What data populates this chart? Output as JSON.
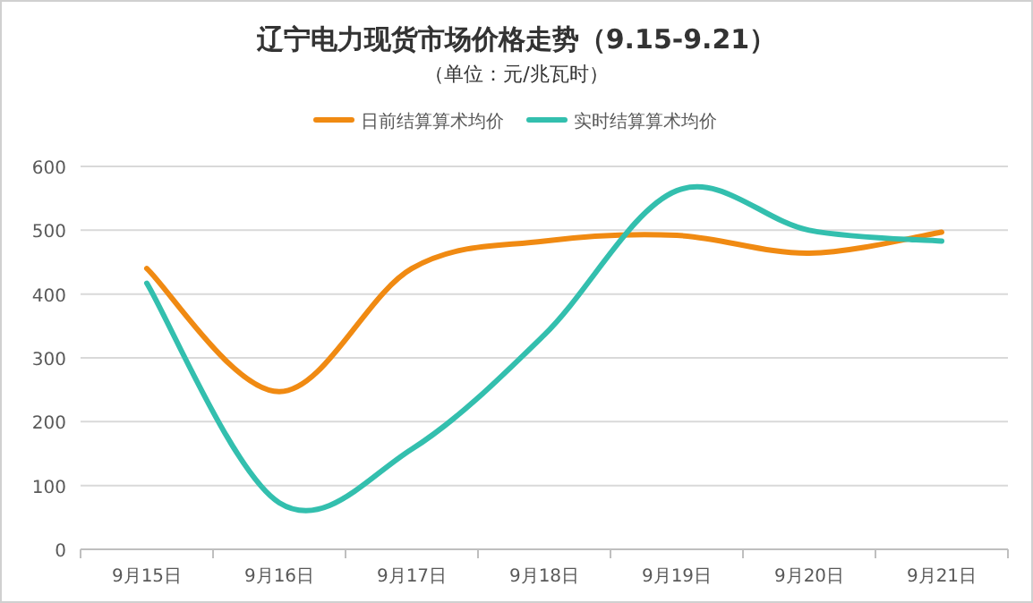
{
  "chart_data": {
    "type": "line",
    "title": "辽宁电力现货市场价格走势（9.15-9.21）",
    "subtitle": "（单位：元/兆瓦时）",
    "categories": [
      "9月15日",
      "9月16日",
      "9月17日",
      "9月18日",
      "9月19日",
      "9月20日",
      "9月21日"
    ],
    "series": [
      {
        "name": "日前结算算术均价",
        "color": "#f08a12",
        "values": [
          440,
          247,
          440,
          483,
          492,
          464,
          497
        ]
      },
      {
        "name": "实时结算算术均价",
        "color": "#33bfae",
        "values": [
          417,
          73,
          157,
          336,
          562,
          500,
          483
        ]
      }
    ],
    "ylim": [
      0,
      600
    ],
    "yticks": [
      0,
      100,
      200,
      300,
      400,
      500,
      600
    ],
    "grid": "y",
    "legend": "top",
    "marker": "none",
    "line_style": "solid"
  }
}
